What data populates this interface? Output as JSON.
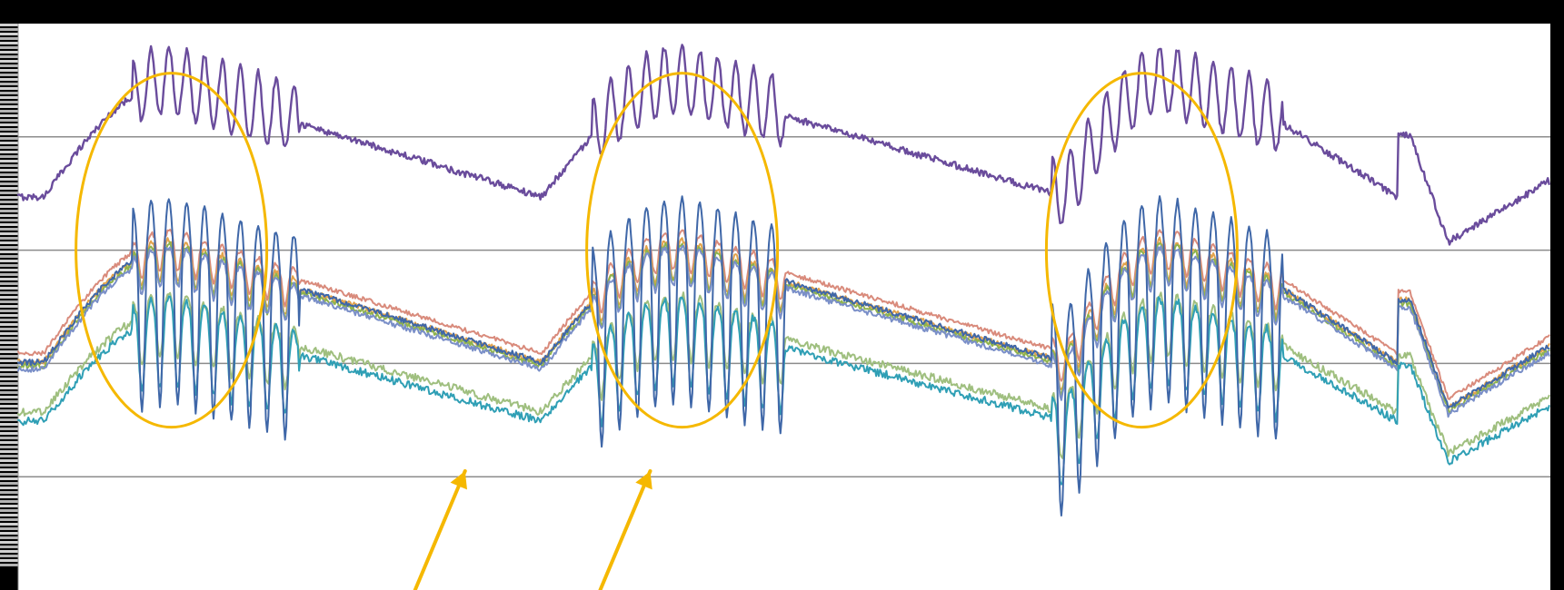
{
  "chart_data": {
    "type": "line",
    "title": "",
    "xlabel": "",
    "ylabel": "",
    "grid": true,
    "legend": "none",
    "colors": {
      "background": "#000000",
      "plot_background": "#ffffff",
      "gridline": "#8c8c8c",
      "annotation": "#f5b800"
    },
    "axis_meta": {
      "x_count": 1200,
      "x_range": [
        0,
        1200
      ],
      "y_range": [
        0,
        5
      ],
      "gridlines_y": [
        1,
        2,
        3,
        4
      ]
    },
    "series": [
      {
        "color": "#6a4c9c",
        "baseline": 3.55,
        "noise": 0.06,
        "level_scale": 1.0
      },
      {
        "color": "#d98b7c",
        "baseline": 2.15,
        "noise": 0.04,
        "level_scale": 1.0
      },
      {
        "color": "#e3a34c",
        "baseline": 2.05,
        "noise": 0.05,
        "level_scale": 1.0
      },
      {
        "color": "#8fb34d",
        "baseline": 2.0,
        "noise": 0.05,
        "level_scale": 1.0
      },
      {
        "color": "#7a8fc8",
        "baseline": 1.95,
        "noise": 0.05,
        "level_scale": 1.0
      },
      {
        "color": "#9fbf7f",
        "baseline": 1.55,
        "noise": 0.07,
        "level_scale": 0.9
      },
      {
        "color": "#2f9fb5",
        "baseline": 1.45,
        "noise": 0.07,
        "level_scale": 0.9
      },
      {
        "color": "#3f67a8",
        "baseline": 1.95,
        "noise": 0.05,
        "level_scale": 1.0
      }
    ],
    "burst_windows": [
      [
        90,
        220
      ],
      [
        450,
        600
      ],
      [
        810,
        990
      ]
    ],
    "annotations": {
      "ellipses": [
        {
          "center_x": 120,
          "center_y": 3.0
        },
        {
          "center_x": 520,
          "center_y": 3.0
        },
        {
          "center_x": 880,
          "center_y": 3.0
        }
      ],
      "arrows": [
        {
          "target_x": 350,
          "target_y": 1.05
        },
        {
          "target_x": 495,
          "target_y": 1.05
        }
      ]
    }
  }
}
